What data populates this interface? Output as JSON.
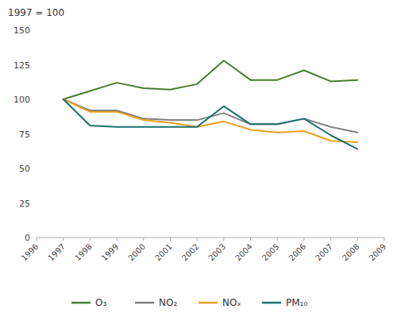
{
  "chart_data": {
    "type": "line",
    "ylabel": "1997 = 100",
    "x": [
      1997,
      1998,
      1999,
      2000,
      2001,
      2002,
      2003,
      2004,
      2005,
      2006,
      2007,
      2008
    ],
    "series": [
      {
        "name": "O₃",
        "color": "#4a7c2f",
        "values": [
          100,
          106,
          112,
          108,
          107,
          111,
          128,
          114,
          114,
          121,
          113,
          114
        ]
      },
      {
        "name": "NO₂",
        "color": "#808080",
        "values": [
          100,
          92,
          92,
          86,
          85,
          85,
          90,
          82,
          82,
          86,
          80,
          76
        ]
      },
      {
        "name": "NOₓ",
        "color": "#e8a020",
        "values": [
          100,
          91,
          91,
          85,
          83,
          80,
          84,
          78,
          76,
          77,
          70,
          69
        ]
      },
      {
        "name": "PM₁₀",
        "color": "#1a7070",
        "values": [
          100,
          81,
          80,
          80,
          80,
          80,
          95,
          82,
          82,
          86,
          74,
          64
        ]
      }
    ],
    "xlim": [
      1996,
      2009
    ],
    "ylim": [
      0,
      150
    ],
    "xticks": [
      1996,
      1997,
      1998,
      1999,
      2000,
      2001,
      2002,
      2003,
      2004,
      2005,
      2006,
      2007,
      2008,
      2009
    ],
    "yticks": [
      0,
      25,
      50,
      75,
      100,
      125,
      150
    ],
    "grid": false,
    "legend": "bottom"
  }
}
